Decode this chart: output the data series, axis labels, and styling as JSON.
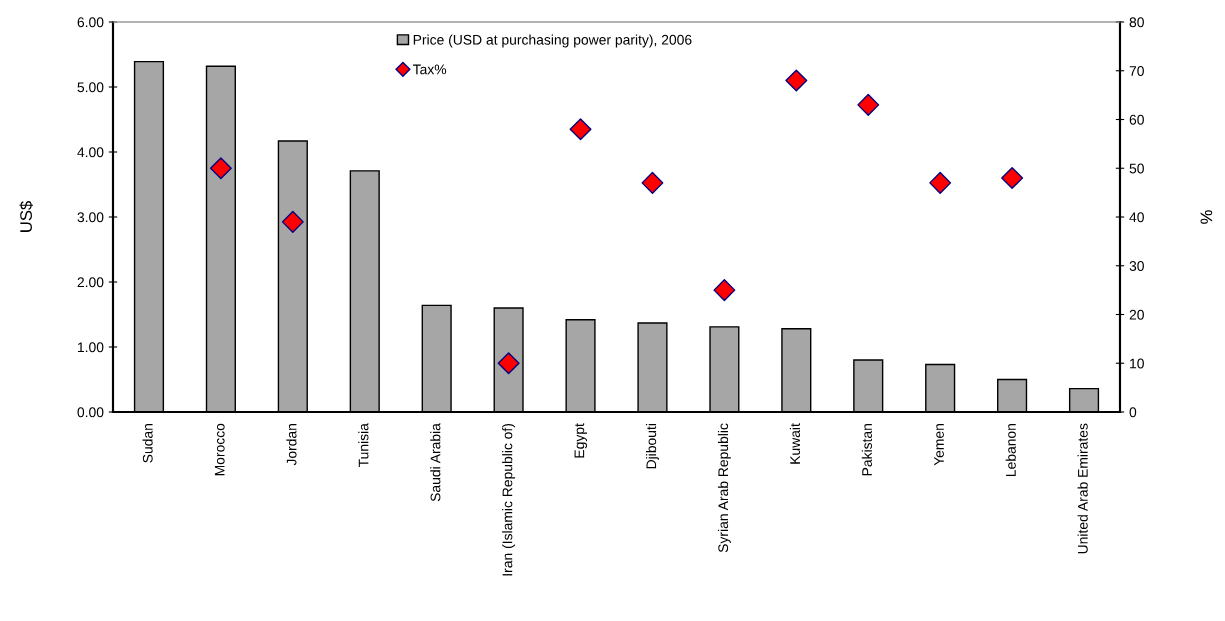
{
  "chart_data": {
    "type": "bar",
    "categories": [
      "Sudan",
      "Morocco",
      "Jordan",
      "Tunisia",
      "Saudi Arabia",
      "Iran (Islamic Republic of)",
      "Egypt",
      "Djibouti",
      "Syrian Arab Republic",
      "Kuwait",
      "Pakistan",
      "Yemen",
      "Lebanon",
      "United Arab Emirates"
    ],
    "series": [
      {
        "name": "Price (USD at purchasing power parity), 2006",
        "color": "#a6a6a6",
        "values": [
          5.39,
          5.32,
          4.17,
          3.71,
          1.64,
          1.6,
          1.42,
          1.37,
          1.31,
          1.28,
          0.8,
          0.73,
          0.5,
          0.36
        ]
      },
      {
        "name": "Tax%",
        "type": "scatter",
        "axis": "y2",
        "color": "#ff0000",
        "marker": "diamond",
        "values": [
          null,
          50,
          39,
          null,
          null,
          10,
          58,
          47,
          25,
          68,
          63,
          47,
          48,
          null
        ]
      }
    ],
    "ylabel": "US$",
    "y2label": "%",
    "ylim": [
      0,
      6
    ],
    "yticks": [
      {
        "value": 0,
        "label": "0.00"
      },
      {
        "value": 1,
        "label": "1.00"
      },
      {
        "value": 2,
        "label": "2.00"
      },
      {
        "value": 3,
        "label": "3.00"
      },
      {
        "value": 4,
        "label": "4.00"
      },
      {
        "value": 5,
        "label": "5.00"
      },
      {
        "value": 6,
        "label": "6.00"
      }
    ],
    "y2lim": [
      0,
      80
    ],
    "y2ticks": [
      0,
      10,
      20,
      30,
      40,
      50,
      60,
      70,
      80
    ],
    "grid": false,
    "legend": "top"
  }
}
